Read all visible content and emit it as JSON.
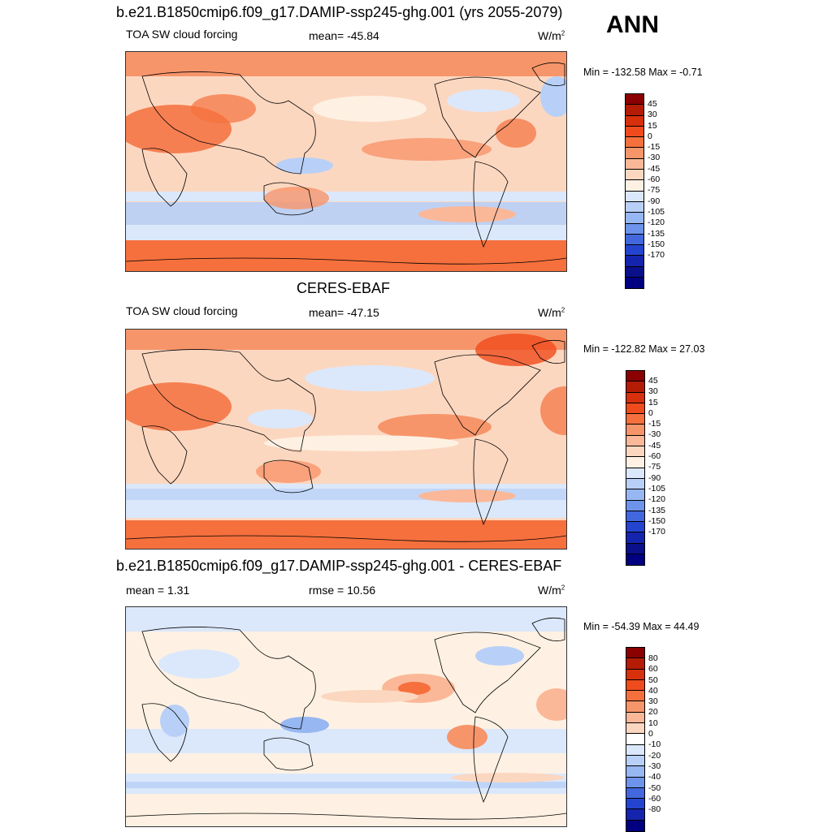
{
  "header": {
    "main_title": "b.e21.B1850cmip6.f09_g17.DAMIP-ssp245-ghg.001 (yrs 2055-2079)",
    "season": "ANN"
  },
  "panels": [
    {
      "title": "",
      "variable": "TOA SW cloud forcing",
      "stat": "mean= -45.84",
      "units": "W/m",
      "units_sup": "2",
      "minmax": "Min = -132.58 Max =  -0.71",
      "colorbar": {
        "colors": [
          "#8b0000",
          "#b41c05",
          "#d7300c",
          "#f04b1c",
          "#f5703d",
          "#f7956a",
          "#fbb898",
          "#fcd7c0",
          "#fef1e3",
          "#dbe8fb",
          "#b8d0f7",
          "#97b7f2",
          "#6d93ea",
          "#4368de",
          "#2444cf",
          "#1524ad",
          "#0a0f8a",
          "#000080"
        ],
        "labels": [
          "45",
          "30",
          "15",
          "0",
          "-15",
          "-30",
          "-45",
          "-60",
          "-75",
          "-90",
          "-105",
          "-120",
          "-135",
          "-150",
          "-170"
        ]
      }
    },
    {
      "title": "CERES-EBAF",
      "variable": "TOA SW cloud forcing",
      "stat": "mean= -47.15",
      "units": "W/m",
      "units_sup": "2",
      "minmax": "Min = -122.82 Max =  27.03",
      "colorbar": {
        "colors": [
          "#8b0000",
          "#b41c05",
          "#d7300c",
          "#f04b1c",
          "#f5703d",
          "#f7956a",
          "#fbb898",
          "#fcd7c0",
          "#fef1e3",
          "#dbe8fb",
          "#b8d0f7",
          "#97b7f2",
          "#6d93ea",
          "#4368de",
          "#2444cf",
          "#1524ad",
          "#0a0f8a",
          "#000080"
        ],
        "labels": [
          "45",
          "30",
          "15",
          "0",
          "-15",
          "-30",
          "-45",
          "-60",
          "-75",
          "-90",
          "-105",
          "-120",
          "-135",
          "-150",
          "-170"
        ]
      }
    },
    {
      "title": "b.e21.B1850cmip6.f09_g17.DAMIP-ssp245-ghg.001 - CERES-EBAF",
      "variable": "mean =   1.31",
      "stat": "rmse =  10.56",
      "units": "W/m",
      "units_sup": "2",
      "minmax": "Min = -54.39 Max =  44.49",
      "colorbar": {
        "colors": [
          "#8b0000",
          "#b41c05",
          "#d7300c",
          "#f04b1c",
          "#f5703d",
          "#f7956a",
          "#fbb898",
          "#fcd7c0",
          "#ffffff",
          "#dbe8fb",
          "#b8d0f7",
          "#97b7f2",
          "#6d93ea",
          "#4368de",
          "#2444cf",
          "#1524ad",
          "#000080"
        ],
        "labels": [
          "80",
          "60",
          "50",
          "40",
          "30",
          "20",
          "10",
          "0",
          "-10",
          "-20",
          "-30",
          "-40",
          "-50",
          "-60",
          "-80"
        ]
      }
    }
  ]
}
